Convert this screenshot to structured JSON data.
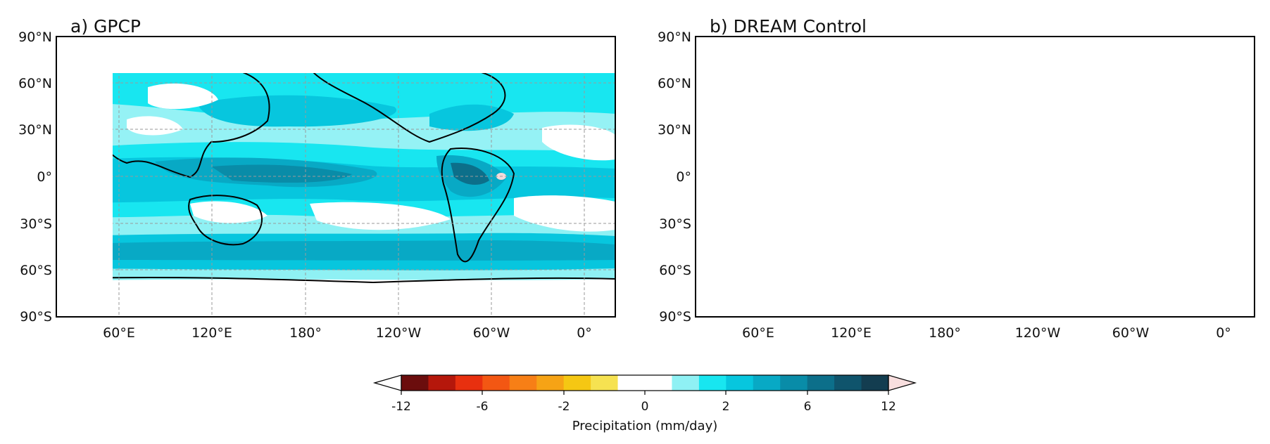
{
  "panels": [
    {
      "title": "a) GPCP",
      "dataset": "gpcp"
    },
    {
      "title": "b) DREAM Control",
      "dataset": "dream"
    }
  ],
  "lat_labels": [
    "90°N",
    "60°N",
    "30°N",
    "0°",
    "30°S",
    "60°S",
    "90°S"
  ],
  "lon_labels": [
    "60°E",
    "120°E",
    "180°",
    "120°W",
    "60°W",
    "0°"
  ],
  "colorbar": {
    "title": "Precipitation (mm/day)",
    "tick_labels": [
      "-12",
      "-6",
      "-2",
      "0",
      "2",
      "6",
      "12"
    ],
    "colors": [
      "#6b0d0d",
      "#b5170b",
      "#e8300f",
      "#f35713",
      "#f77f16",
      "#f6a315",
      "#f5c713",
      "#f6e251",
      "#ffffff",
      "#ffffff",
      "#8ff1f4",
      "#18e6f0",
      "#07c6de",
      "#08a9c5",
      "#098ca8",
      "#0c6f8a",
      "#0f546c",
      "#133d50"
    ],
    "under_color": "#ffffff",
    "over_color": "#f8dede"
  },
  "colors": {
    "land_outline": "#000000",
    "grid": "#9a9a9a",
    "dry_patch": "#f4dada"
  }
}
